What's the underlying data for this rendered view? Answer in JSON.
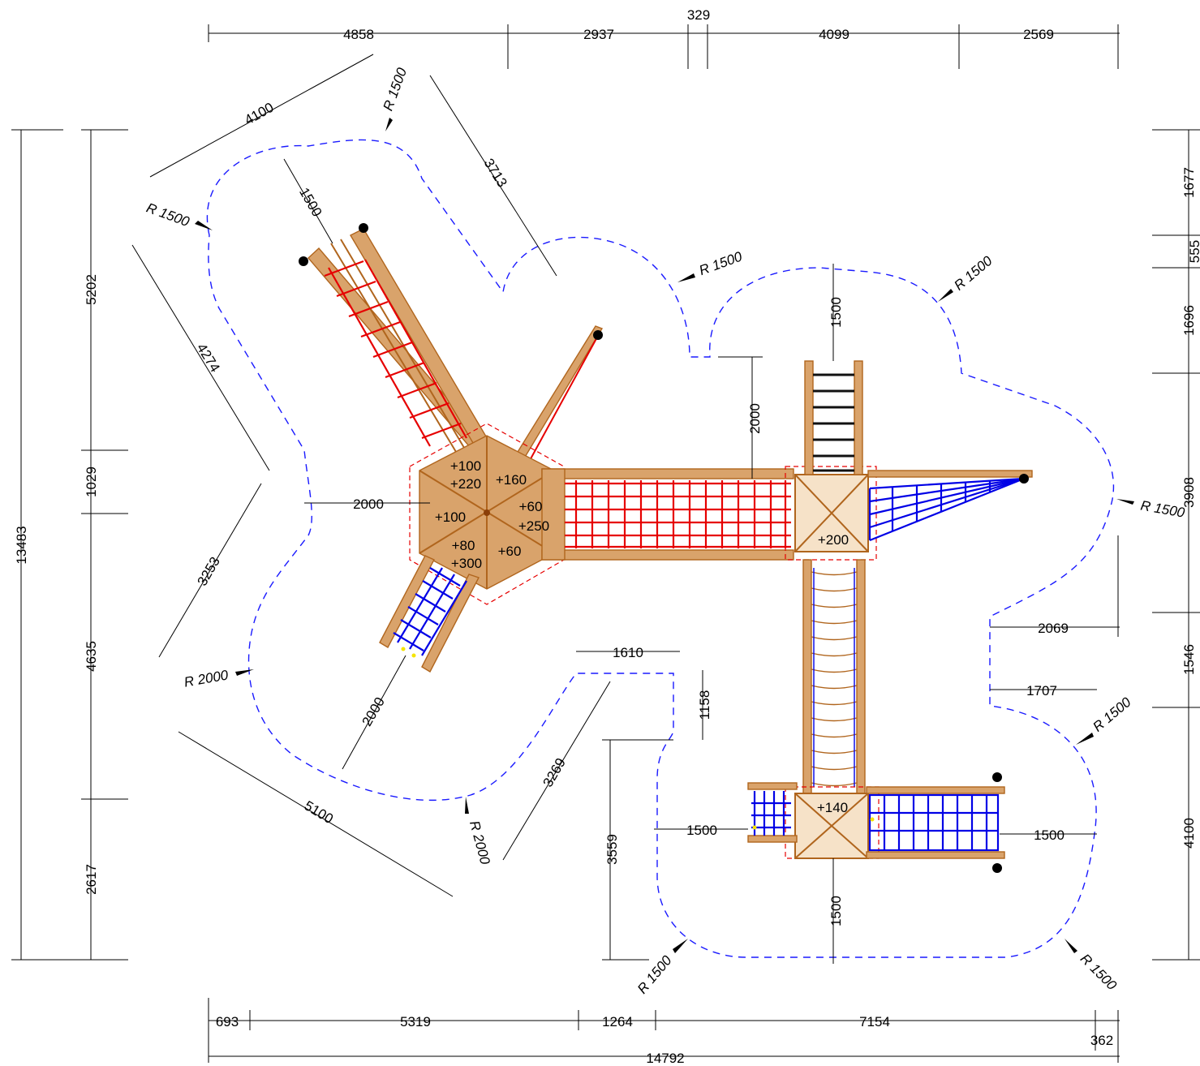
{
  "dimensions": {
    "top": [
      "4858",
      "2937",
      "329",
      "4099",
      "2569"
    ],
    "bottom": [
      "693",
      "5319",
      "1264",
      "7154",
      "362",
      "14792"
    ],
    "left": [
      "13483",
      "5202",
      "1029",
      "4635",
      "2617"
    ],
    "right": [
      "1677",
      "555",
      "1696",
      "3908",
      "1546",
      "4100"
    ],
    "diagonal": [
      "4100",
      "3713",
      "1500",
      "4274",
      "3253",
      "5100",
      "3269",
      "2000"
    ],
    "internal": [
      "2000",
      "2000",
      "1500",
      "2069",
      "1707",
      "1610",
      "1158",
      "3559",
      "1500",
      "1500",
      "1500"
    ]
  },
  "radii": [
    "R 1500",
    "R 1500",
    "R 1500",
    "R 1500",
    "R 1500",
    "R 1500",
    "R 1500",
    "R 1500",
    "R 2000",
    "R 2000"
  ],
  "heights": [
    "+100",
    "+220",
    "+160",
    "+100",
    "+60",
    "+250",
    "+80",
    "+300",
    "+60",
    "+200",
    "+140"
  ],
  "colors": {
    "safety_zone": "#1a1aff",
    "wood": "#b0651d",
    "net_red": "#e60000",
    "net_blue": "#0000e6",
    "ladder_black": "#111111"
  }
}
